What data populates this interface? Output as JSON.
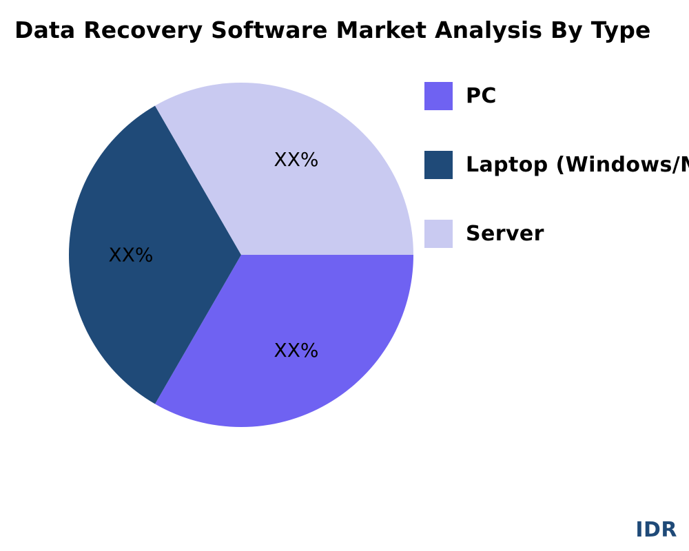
{
  "title": "Data Recovery Software Market Analysis By Type",
  "brand": {
    "text": "IDR",
    "color": "#1f4a78"
  },
  "chart_data": {
    "type": "pie",
    "title": "Data Recovery Software Market Analysis By Type",
    "slices": [
      {
        "name": "PC",
        "value": 33.33,
        "label": "XX%",
        "color": "#6f62f2"
      },
      {
        "name": "Laptop (Windows/Mac)",
        "value": 33.33,
        "label": "XX%",
        "color": "#1f4a78"
      },
      {
        "name": "Server",
        "value": 33.33,
        "label": "XX%",
        "color": "#c9caf1"
      }
    ],
    "start_angle_deg": 0,
    "direction": "clockwise",
    "legend_position": "right",
    "legend": [
      {
        "label": "PC",
        "color": "#6f62f2"
      },
      {
        "label": "Laptop (Windows/Mac)",
        "color": "#1f4a78"
      },
      {
        "label": "Server",
        "color": "#c9caf1"
      }
    ]
  }
}
